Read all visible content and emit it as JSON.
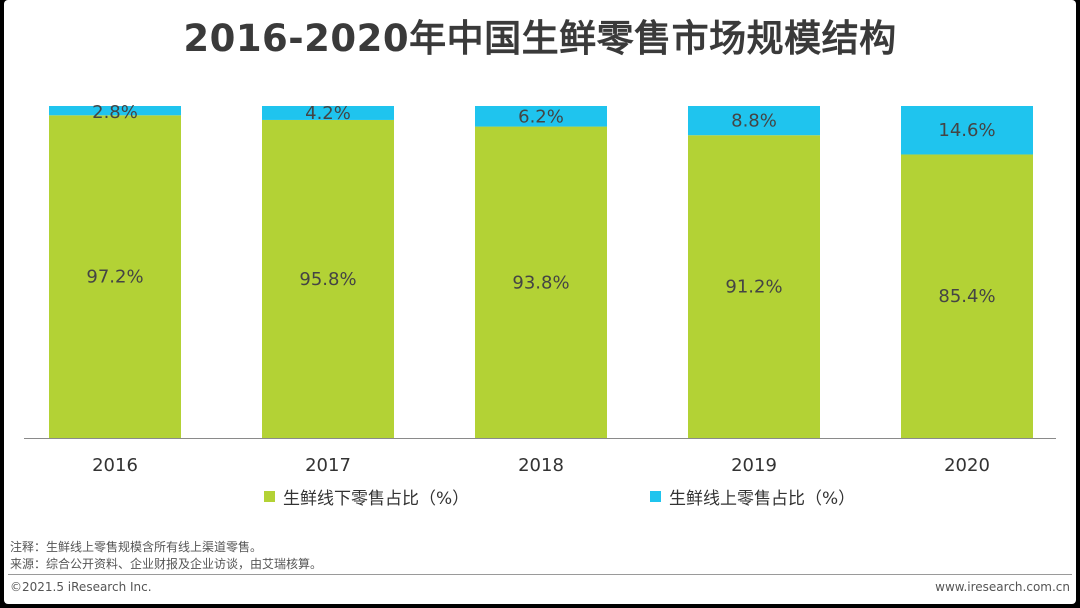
{
  "title": "2016-2020年中国生鲜零售市场规模结构",
  "colors": {
    "offline": "#b3d235",
    "online": "#1fc4ee"
  },
  "chart_data": {
    "type": "bar",
    "stacked": true,
    "categories": [
      "2016",
      "2017",
      "2018",
      "2019",
      "2020"
    ],
    "series": [
      {
        "name": "生鲜线下零售占比（%）",
        "values": [
          97.2,
          95.8,
          93.8,
          91.2,
          85.4
        ],
        "labels": [
          "97.2%",
          "95.8%",
          "93.8%",
          "91.2%",
          "85.4%"
        ]
      },
      {
        "name": "生鲜线上零售占比（%）",
        "values": [
          2.8,
          4.2,
          6.2,
          8.8,
          14.6
        ],
        "labels": [
          "2.8%",
          "4.2%",
          "6.2%",
          "8.8%",
          "14.6%"
        ]
      }
    ],
    "ylim": [
      0,
      100
    ],
    "grid": false,
    "legend_position": "bottom"
  },
  "notes": {
    "note": "注释：生鲜线上零售规模含所有线上渠道零售。",
    "source": "来源：综合公开资料、企业财报及企业访谈，由艾瑞核算。"
  },
  "footer": {
    "copyright": "©2021.5 iResearch Inc.",
    "website": "www.iresearch.com.cn"
  }
}
